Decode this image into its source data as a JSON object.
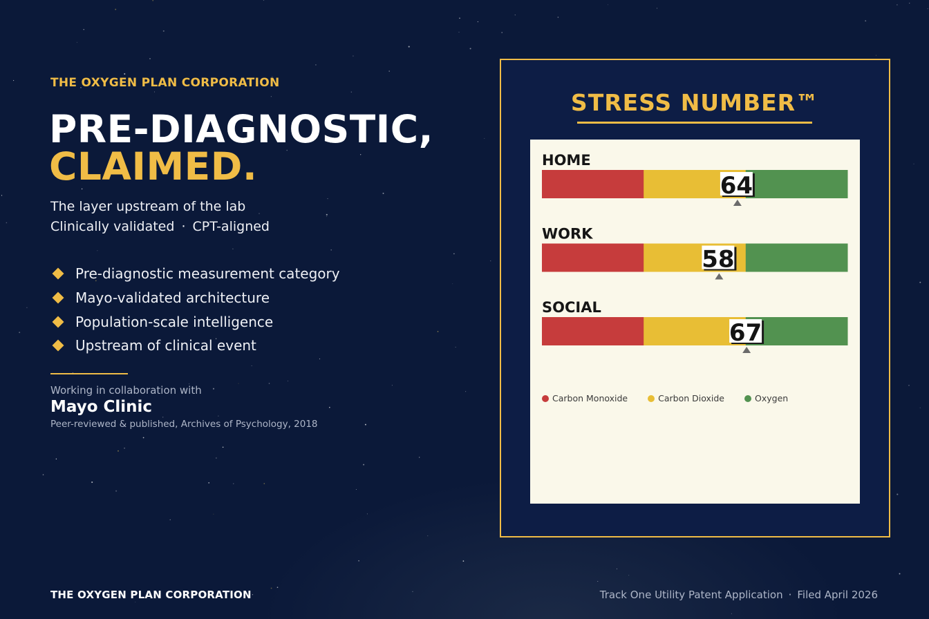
{
  "brand": {
    "eyebrow": "THE OXYGEN PLAN CORPORATION",
    "accent_color": "#f0bc46",
    "text_color": "#ffffff",
    "background_color": "#0b1939"
  },
  "hero": {
    "headline_line1": "PRE-DIAGNOSTIC,",
    "headline_line2": "CLAIMED.",
    "subline1": "The layer upstream of the lab",
    "subline2_a": "Clinically validated",
    "subline2_sep": "·",
    "subline2_b": "CPT-aligned"
  },
  "bullets": [
    "Pre-diagnostic measurement category",
    "Mayo-validated architecture",
    "Population-scale intelligence",
    "Upstream of clinical event"
  ],
  "collaboration": {
    "intro": "Working in collaboration with",
    "partner": "Mayo Clinic",
    "citation": "Peer-reviewed & published, Archives of Psychology, 2018"
  },
  "footer": {
    "left": "THE OXYGEN PLAN CORPORATION",
    "right_a": "Track One Utility Patent Application",
    "right_sep": "·",
    "right_b": "Filed April 2026"
  },
  "panel": {
    "title": "STRESS NUMBER™",
    "card_color": "#faf8ea",
    "frame_color": "#0d1d45",
    "gauge_min": 0,
    "gauge_max": 100,
    "zones": [
      {
        "name": "Carbon Monoxide",
        "color": "#c63c3c",
        "from": 0,
        "to": 33.3
      },
      {
        "name": "Carbon Dioxide",
        "color": "#e8be35",
        "from": 33.3,
        "to": 66.7
      },
      {
        "name": "Oxygen",
        "color": "#529250",
        "from": 66.7,
        "to": 100
      }
    ],
    "gauges": [
      {
        "label": "HOME",
        "value": 64
      },
      {
        "label": "WORK",
        "value": 58
      },
      {
        "label": "SOCIAL",
        "value": 67
      }
    ]
  }
}
